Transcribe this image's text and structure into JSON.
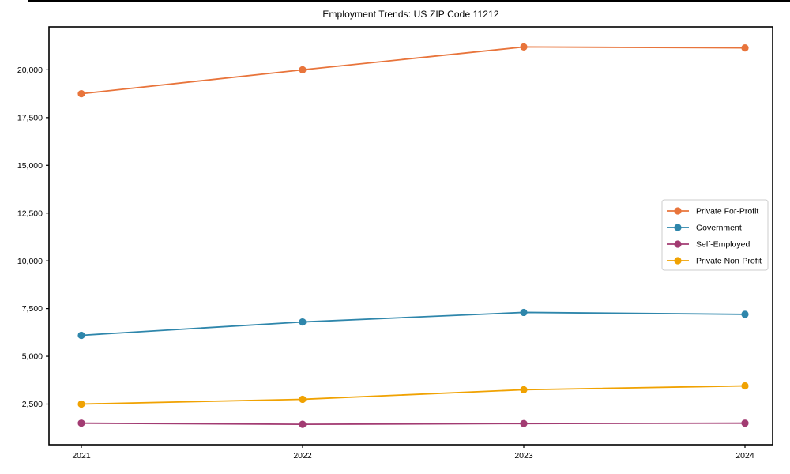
{
  "chart_data": {
    "type": "line",
    "title": "Employment Trends: US ZIP Code 11212",
    "x": [
      "2021",
      "2022",
      "2023",
      "2024"
    ],
    "series": [
      {
        "name": "Private For-Profit",
        "color": "#E8743B",
        "values": [
          18750,
          20000,
          21200,
          21150
        ]
      },
      {
        "name": "Government",
        "color": "#2E86AB",
        "values": [
          6100,
          6800,
          7300,
          7200
        ]
      },
      {
        "name": "Self-Employed",
        "color": "#A23B72",
        "values": [
          1500,
          1440,
          1480,
          1500
        ]
      },
      {
        "name": "Private Non-Profit",
        "color": "#F0A202",
        "values": [
          2500,
          2750,
          3250,
          3450
        ]
      }
    ],
    "xlabel": "",
    "ylabel": "",
    "ylim": [
      370,
      22250
    ],
    "yticks": [
      2500,
      5000,
      7500,
      10000,
      12500,
      15000,
      17500,
      20000
    ],
    "ytick_labels": [
      "2,500",
      "5,000",
      "7,500",
      "10,000",
      "12,500",
      "15,000",
      "17,500",
      "20,000"
    ],
    "xtick_labels": [
      "2021",
      "2022",
      "2023",
      "2024"
    ],
    "grid": false,
    "legend": {
      "position": "center-right",
      "entries": [
        "Private For-Profit",
        "Government",
        "Self-Employed",
        "Private Non-Profit"
      ]
    },
    "axis_color": "#000000",
    "legend_border_color": "#cccccc",
    "background_color": "#ffffff"
  }
}
